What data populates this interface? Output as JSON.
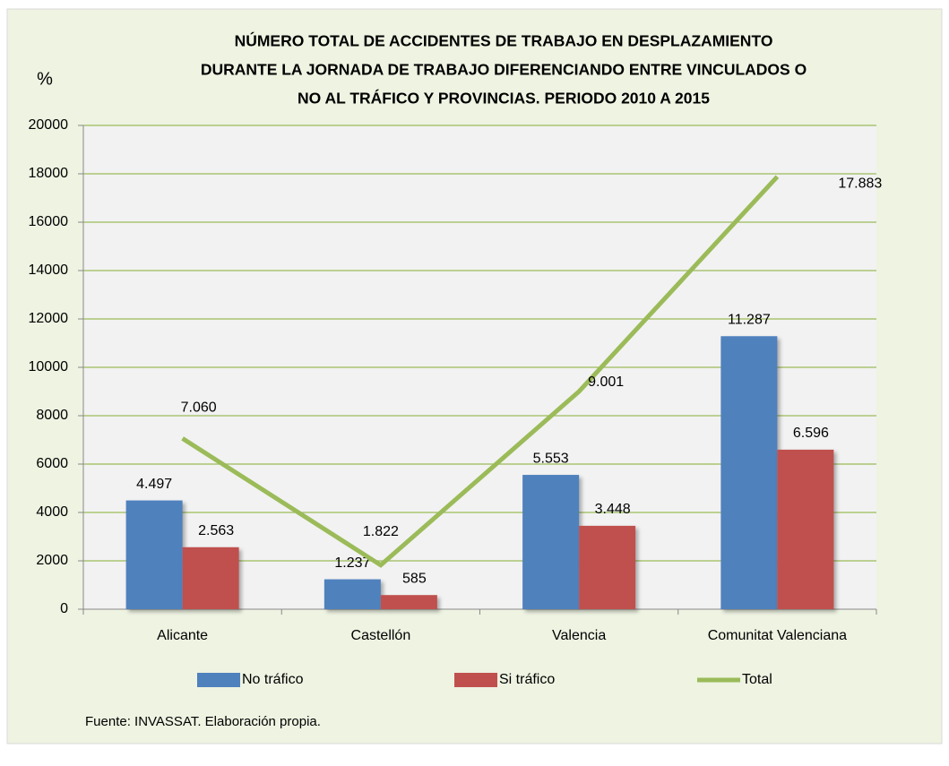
{
  "chart_data": {
    "type": "bar",
    "title": [
      "NÚMERO TOTAL DE ACCIDENTES DE TRABAJO EN DESPLAZAMIENTO",
      "DURANTE LA JORNADA DE TRABAJO DIFERENCIANDO ENTRE VINCULADOS O",
      "NO AL TRÁFICO Y PROVINCIAS. PERIODO 2010 A 2015"
    ],
    "y_label": "%",
    "note": "Fuente: INVASSAT. Elaboración propia.",
    "categories": [
      "Alicante",
      "Castellón",
      "Valencia",
      "Comunitat Valenciana"
    ],
    "series": [
      {
        "name": "No tráfico",
        "color": "#4f81bd",
        "type": "bar",
        "values": [
          4497,
          1237,
          5553,
          11287
        ],
        "value_labels": [
          "4.497",
          "1.237",
          "5.553",
          "11.287"
        ]
      },
      {
        "name": "Si tráfico",
        "color": "#c0504d",
        "type": "bar",
        "values": [
          2563,
          585,
          3448,
          6596
        ],
        "value_labels": [
          "2.563",
          "585",
          "3.448",
          "6.596"
        ]
      },
      {
        "name": "Total",
        "color": "#9bbb59",
        "type": "line",
        "values": [
          7060,
          1822,
          9001,
          17883
        ],
        "value_labels": [
          "7.060",
          "1.822",
          "9.001",
          "17.883"
        ]
      }
    ],
    "ylim": [
      0,
      20000
    ],
    "yticks": [
      0,
      2000,
      4000,
      6000,
      8000,
      10000,
      12000,
      14000,
      16000,
      18000,
      20000
    ],
    "grid": true,
    "legend": "bottom"
  }
}
